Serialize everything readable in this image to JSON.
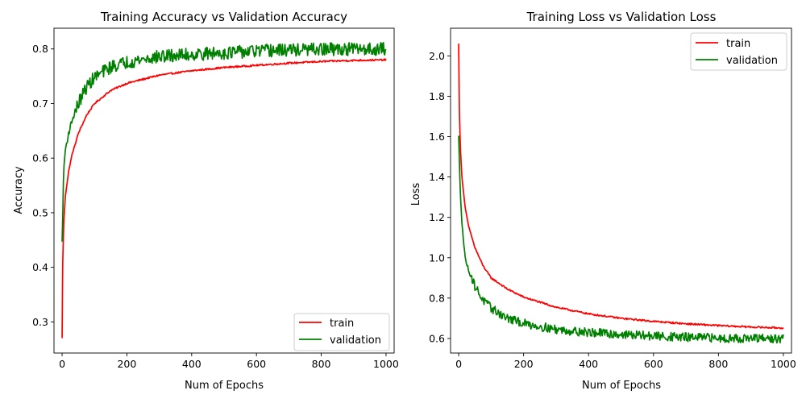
{
  "chart_data": [
    {
      "type": "line",
      "title": "Training Accuracy vs Validation Accuracy",
      "xlabel": "Num of Epochs",
      "ylabel": "Accuracy",
      "xlim": [
        -25,
        1025
      ],
      "ylim": [
        0.243,
        0.838
      ],
      "xticks": [
        0,
        200,
        400,
        600,
        800,
        1000
      ],
      "yticks": [
        0.3,
        0.4,
        0.5,
        0.6,
        0.7,
        0.8
      ],
      "xtick_labels": [
        "0",
        "200",
        "400",
        "600",
        "800",
        "1000"
      ],
      "ytick_labels": [
        "0.3",
        "0.4",
        "0.5",
        "0.6",
        "0.7",
        "0.8"
      ],
      "legend": {
        "position": "bottom-right",
        "entries": [
          "train",
          "validation"
        ]
      },
      "series": [
        {
          "name": "train",
          "color": "#ff0000",
          "x": [
            0,
            2,
            5,
            10,
            20,
            30,
            50,
            75,
            100,
            150,
            200,
            300,
            400,
            500,
            600,
            700,
            800,
            900,
            1000
          ],
          "y": [
            0.27,
            0.41,
            0.48,
            0.53,
            0.575,
            0.605,
            0.645,
            0.678,
            0.7,
            0.724,
            0.737,
            0.752,
            0.76,
            0.766,
            0.77,
            0.774,
            0.777,
            0.779,
            0.78
          ],
          "noise": 0.0015
        },
        {
          "name": "validation",
          "color": "#008000",
          "x": [
            0,
            5,
            10,
            20,
            30,
            50,
            75,
            100,
            150,
            200,
            300,
            400,
            500,
            600,
            700,
            800,
            900,
            1000
          ],
          "y": [
            0.445,
            0.58,
            0.615,
            0.645,
            0.668,
            0.7,
            0.73,
            0.748,
            0.767,
            0.776,
            0.786,
            0.79,
            0.793,
            0.796,
            0.798,
            0.799,
            0.8,
            0.8
          ],
          "noise": 0.012
        }
      ]
    },
    {
      "type": "line",
      "title": "Training Loss vs Validation Loss",
      "xlabel": "Num of Epochs",
      "ylabel": "Loss",
      "xlim": [
        -25,
        1025
      ],
      "ylim": [
        0.528,
        2.137
      ],
      "xticks": [
        0,
        200,
        400,
        600,
        800,
        1000
      ],
      "yticks": [
        0.6,
        0.8,
        1.0,
        1.2,
        1.4,
        1.6,
        1.8,
        2.0
      ],
      "xtick_labels": [
        "0",
        "200",
        "400",
        "600",
        "800",
        "1000"
      ],
      "ytick_labels": [
        "0.6",
        "0.8",
        "1.0",
        "1.2",
        "1.4",
        "1.6",
        "1.8",
        "2.0"
      ],
      "legend": {
        "position": "top-right",
        "entries": [
          "train",
          "validation"
        ]
      },
      "series": [
        {
          "name": "train",
          "color": "#ff0000",
          "x": [
            0,
            2,
            5,
            10,
            20,
            30,
            50,
            75,
            100,
            150,
            200,
            300,
            400,
            500,
            600,
            700,
            800,
            900,
            1000
          ],
          "y": [
            2.06,
            1.75,
            1.55,
            1.4,
            1.25,
            1.16,
            1.05,
            0.96,
            0.9,
            0.845,
            0.805,
            0.755,
            0.722,
            0.7,
            0.685,
            0.673,
            0.664,
            0.657,
            0.652
          ],
          "noise": 0.004
        },
        {
          "name": "validation",
          "color": "#008000",
          "x": [
            0,
            3,
            6,
            10,
            15,
            20,
            30,
            50,
            75,
            100,
            150,
            200,
            300,
            400,
            500,
            600,
            700,
            800,
            900,
            1000
          ],
          "y": [
            1.6,
            1.42,
            1.3,
            1.18,
            1.08,
            1.0,
            0.94,
            0.86,
            0.79,
            0.75,
            0.7,
            0.675,
            0.645,
            0.63,
            0.62,
            0.612,
            0.606,
            0.602,
            0.6,
            0.598
          ],
          "noise": 0.022
        }
      ]
    }
  ]
}
